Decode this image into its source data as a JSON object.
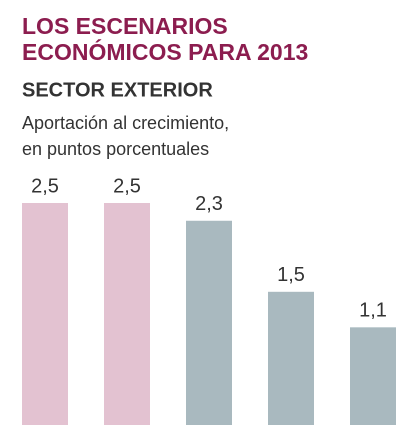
{
  "chart_data": {
    "type": "bar",
    "title": [
      "LOS ESCENARIOS",
      "ECONÓMICOS PARA 2013"
    ],
    "subtitle": "SECTOR EXTERIOR",
    "description": [
      "Aportación al crecimiento,",
      "en puntos porcentuales"
    ],
    "categories": [
      null,
      null,
      null,
      null,
      null
    ],
    "values": [
      2.5,
      2.5,
      2.3,
      1.5,
      1.1
    ],
    "value_labels": [
      "2,5",
      "2,5",
      "2,3",
      "1,5",
      "1,1"
    ],
    "colors": [
      "#e3c2d1",
      "#e3c2d1",
      "#a9b9bf",
      "#a9b9bf",
      "#a9b9bf"
    ]
  }
}
